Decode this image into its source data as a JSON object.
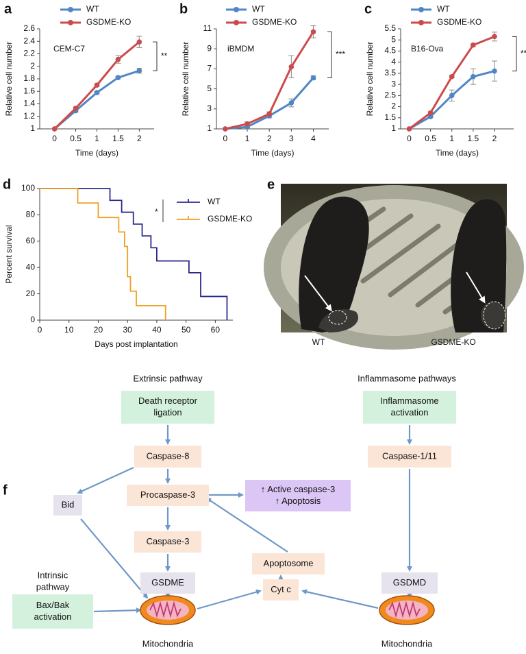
{
  "chart_data": [
    {
      "type": "line",
      "panel": "a",
      "annotation": "CEM-C7",
      "x": [
        0,
        0.5,
        1,
        1.5,
        2
      ],
      "series": [
        {
          "name": "WT",
          "color": "#4f86c6",
          "values": [
            1,
            1.29,
            1.58,
            1.82,
            1.93
          ],
          "errors": [
            0,
            0.02,
            0.02,
            0.02,
            0.04
          ]
        },
        {
          "name": "GSDME-KO",
          "color": "#cd4a4a",
          "values": [
            1,
            1.33,
            1.7,
            2.11,
            2.39
          ],
          "errors": [
            0,
            0.02,
            0.02,
            0.06,
            0.09
          ]
        }
      ],
      "xlabel": "Time (days)",
      "ylabel": "Relative cell number",
      "xlim": [
        -0.35,
        2.35
      ],
      "ylim": [
        1,
        2.6
      ],
      "xticks": [
        0,
        0.5,
        1,
        1.5,
        2
      ],
      "yticks": [
        1,
        1.2,
        1.4,
        1.6,
        1.8,
        2,
        2.2,
        2.4,
        2.6
      ],
      "significance": "**"
    },
    {
      "type": "line",
      "panel": "b",
      "annotation": "iBMDM",
      "x": [
        0,
        1,
        2,
        3,
        4
      ],
      "series": [
        {
          "name": "WT",
          "color": "#4f86c6",
          "values": [
            1,
            1.2,
            2.3,
            3.6,
            6.1
          ],
          "errors": [
            0,
            0.1,
            0.2,
            0.4,
            0.2
          ]
        },
        {
          "name": "GSDME-KO",
          "color": "#cd4a4a",
          "values": [
            1,
            1.5,
            2.5,
            7.2,
            10.7
          ],
          "errors": [
            0,
            0.2,
            0.2,
            1.1,
            0.6
          ]
        }
      ],
      "xlabel": "Time (days)",
      "ylabel": "Relative cell number",
      "xlim": [
        -0.4,
        4.7
      ],
      "ylim": [
        1,
        11
      ],
      "xticks": [
        0,
        1,
        2,
        3,
        4
      ],
      "yticks": [
        1,
        3,
        5,
        7,
        9,
        11
      ],
      "significance": "***"
    },
    {
      "type": "line",
      "panel": "c",
      "annotation": "B16-Ova",
      "x": [
        0,
        0.5,
        1,
        1.5,
        2
      ],
      "series": [
        {
          "name": "WT",
          "color": "#4f86c6",
          "values": [
            1,
            1.55,
            2.5,
            3.35,
            3.6
          ],
          "errors": [
            0,
            0.05,
            0.25,
            0.35,
            0.45
          ]
        },
        {
          "name": "GSDME-KO",
          "color": "#cd4a4a",
          "values": [
            1,
            1.72,
            3.35,
            4.77,
            5.15
          ],
          "errors": [
            0,
            0.05,
            0.05,
            0.05,
            0.2
          ]
        }
      ],
      "xlabel": "Time (days)",
      "ylabel": "Relative cell number",
      "xlim": [
        -0.2,
        2.45
      ],
      "ylim": [
        1,
        5.5
      ],
      "xticks": [
        0,
        0.5,
        1,
        1.5,
        2
      ],
      "yticks": [
        1,
        1.5,
        2,
        2.5,
        3,
        3.5,
        4,
        4.5,
        5,
        5.5
      ],
      "significance": "**"
    },
    {
      "type": "step",
      "panel": "d",
      "series": [
        {
          "name": "WT",
          "color": "#2b2a8c",
          "x": [
            0,
            24,
            28,
            32,
            35,
            38,
            40,
            51,
            55,
            64
          ],
          "values": [
            100,
            91,
            82,
            73,
            64,
            55,
            45,
            36,
            18,
            0
          ]
        },
        {
          "name": "GSDME-KO",
          "color": "#f0a020",
          "x": [
            0,
            13,
            20,
            27,
            29,
            30,
            31,
            33,
            43
          ],
          "values": [
            100,
            89,
            78,
            67,
            56,
            33,
            22,
            11,
            0
          ]
        }
      ],
      "xlabel": "Days post implantation",
      "ylabel": "Percent survival",
      "xlim": [
        0,
        66
      ],
      "ylim": [
        0,
        100
      ],
      "xticks": [
        0,
        10,
        20,
        30,
        40,
        50,
        60
      ],
      "yticks": [
        0,
        20,
        40,
        60,
        80,
        100
      ],
      "significance": "*"
    }
  ],
  "photo": {
    "panel": "e",
    "labels": [
      "WT",
      "GSDME-KO"
    ]
  },
  "diagram": {
    "panel": "f",
    "headings": [
      "Extrinsic pathway",
      "Inflammasome pathways"
    ],
    "intrinsic_heading": [
      "Intrinsic",
      "pathway"
    ],
    "nodes": [
      {
        "label": [
          "Death receptor",
          "ligation"
        ]
      },
      {
        "label": [
          "Caspase-8"
        ]
      },
      {
        "label": [
          "Procaspase-3"
        ]
      },
      {
        "label": [
          "Caspase-3"
        ]
      },
      {
        "label": [
          "GSDME"
        ]
      },
      {
        "label": [
          "Bid"
        ]
      },
      {
        "label": [
          "Bax/Bak",
          "activation"
        ]
      },
      {
        "label": [
          "↑ Active caspase-3",
          "↑ Apoptosis"
        ]
      },
      {
        "label": [
          "Apoptosome"
        ]
      },
      {
        "label": [
          "Cyt c"
        ]
      },
      {
        "label": [
          "Inflammasome",
          "activation"
        ]
      },
      {
        "label": [
          "Caspase-1/11"
        ]
      },
      {
        "label": [
          "GSDMD"
        ]
      }
    ],
    "mitochondria_labels": [
      "Mitochondria",
      "Mitochondria"
    ]
  }
}
